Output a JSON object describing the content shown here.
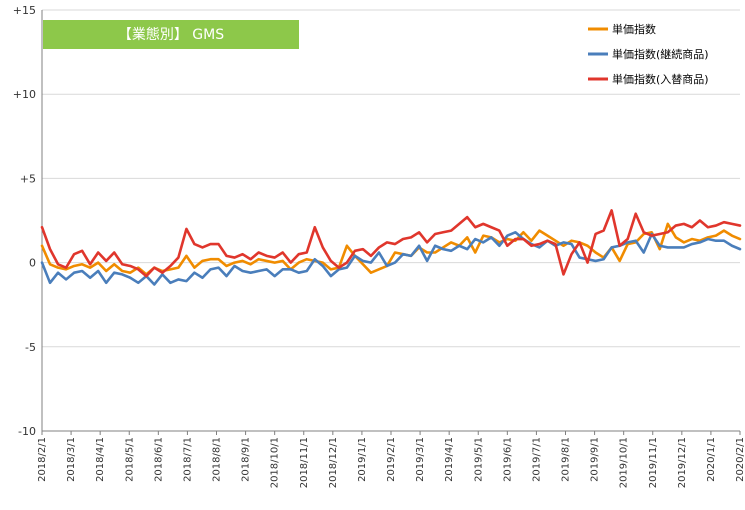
{
  "chart_data": {
    "type": "line",
    "tag": "【業態別】 GMS",
    "tag_color": "#8dc84a",
    "ylim": [
      -10,
      15
    ],
    "yticks": [
      {
        "value": 15,
        "label": "+15"
      },
      {
        "value": 10,
        "label": "+10"
      },
      {
        "value": 5,
        "label": "+5"
      },
      {
        "value": 0,
        "label": "0"
      },
      {
        "value": -5,
        "label": "-5"
      },
      {
        "value": -10,
        "label": "-10"
      }
    ],
    "x_labels": [
      "2018/2/1",
      "2018/3/1",
      "2018/4/1",
      "2018/5/1",
      "2018/6/1",
      "2018/7/1",
      "2018/8/1",
      "2018/9/1",
      "2018/10/1",
      "2018/11/1",
      "2018/12/1",
      "2019/1/1",
      "2019/2/1",
      "2019/3/1",
      "2019/4/1",
      "2019/5/1",
      "2019/6/1",
      "2019/7/1",
      "2019/8/1",
      "2019/9/1",
      "2019/10/1",
      "2019/11/1",
      "2019/12/1",
      "2020/1/1",
      "2020/2/1"
    ],
    "legend_position": "top-right",
    "grid": "horizontal",
    "series": [
      {
        "name": "単価指数",
        "color": "#f08c00",
        "values": [
          1.0,
          -0.1,
          -0.3,
          -0.4,
          -0.2,
          -0.1,
          -0.3,
          0.0,
          -0.5,
          -0.1,
          -0.5,
          -0.6,
          -0.3,
          -0.7,
          -0.3,
          -0.5,
          -0.4,
          -0.3,
          0.4,
          -0.3,
          0.1,
          0.2,
          0.2,
          -0.2,
          0.0,
          0.1,
          -0.1,
          0.2,
          0.1,
          0.0,
          0.1,
          -0.4,
          0.0,
          0.2,
          0.1,
          0.0,
          -0.4,
          -0.3,
          1.0,
          0.4,
          -0.1,
          -0.6,
          -0.4,
          -0.2,
          0.6,
          0.5,
          0.4,
          0.9,
          0.6,
          0.6,
          0.9,
          1.2,
          1.0,
          1.5,
          0.6,
          1.6,
          1.5,
          1.2,
          1.4,
          1.3,
          1.8,
          1.3,
          1.9,
          1.6,
          1.3,
          1.0,
          1.3,
          1.2,
          1.0,
          0.6,
          0.3,
          0.9,
          0.1,
          1.1,
          1.2,
          1.7,
          1.8,
          0.8,
          2.3,
          1.5,
          1.2,
          1.4,
          1.3,
          1.5,
          1.6,
          1.9,
          1.6,
          1.4
        ]
      },
      {
        "name": "単価指数(継続商品)",
        "color": "#4a7ebb",
        "values": [
          0.0,
          -1.2,
          -0.6,
          -1.0,
          -0.6,
          -0.5,
          -0.9,
          -0.5,
          -1.2,
          -0.6,
          -0.7,
          -0.9,
          -1.2,
          -0.8,
          -1.3,
          -0.7,
          -1.2,
          -1.0,
          -1.1,
          -0.6,
          -0.9,
          -0.4,
          -0.3,
          -0.8,
          -0.2,
          -0.5,
          -0.6,
          -0.5,
          -0.4,
          -0.8,
          -0.4,
          -0.4,
          -0.6,
          -0.5,
          0.2,
          -0.2,
          -0.8,
          -0.4,
          -0.3,
          0.4,
          0.1,
          0.0,
          0.6,
          -0.2,
          0.0,
          0.5,
          0.4,
          1.0,
          0.1,
          1.0,
          0.8,
          0.7,
          1.0,
          0.8,
          1.4,
          1.2,
          1.5,
          1.0,
          1.6,
          1.8,
          1.4,
          1.1,
          0.9,
          1.3,
          1.0,
          1.2,
          1.1,
          0.3,
          0.2,
          0.1,
          0.2,
          0.9,
          1.0,
          1.2,
          1.3,
          0.6,
          1.7,
          1.0,
          0.9,
          0.9,
          0.9,
          1.1,
          1.2,
          1.4,
          1.3,
          1.3,
          1.0,
          0.8
        ]
      },
      {
        "name": "単価指数(入替商品)",
        "color": "#e0362c",
        "values": [
          2.1,
          0.8,
          -0.1,
          -0.3,
          0.5,
          0.7,
          -0.1,
          0.6,
          0.1,
          0.6,
          -0.1,
          -0.2,
          -0.4,
          -0.8,
          -0.3,
          -0.6,
          -0.2,
          0.3,
          2.0,
          1.1,
          0.9,
          1.1,
          1.1,
          0.4,
          0.3,
          0.5,
          0.2,
          0.6,
          0.4,
          0.3,
          0.6,
          0.0,
          0.5,
          0.6,
          2.1,
          0.9,
          0.1,
          -0.3,
          0.0,
          0.7,
          0.8,
          0.4,
          0.9,
          1.2,
          1.1,
          1.4,
          1.5,
          1.8,
          1.2,
          1.7,
          1.8,
          1.9,
          2.3,
          2.7,
          2.1,
          2.3,
          2.1,
          1.9,
          1.0,
          1.4,
          1.4,
          1.0,
          1.1,
          1.3,
          1.1,
          -0.7,
          0.5,
          1.2,
          0.0,
          1.7,
          1.9,
          3.1,
          1.0,
          1.4,
          2.9,
          1.8,
          1.6,
          1.7,
          1.8,
          2.2,
          2.3,
          2.1,
          2.5,
          2.1,
          2.2,
          2.4,
          2.3,
          2.2
        ]
      }
    ]
  }
}
